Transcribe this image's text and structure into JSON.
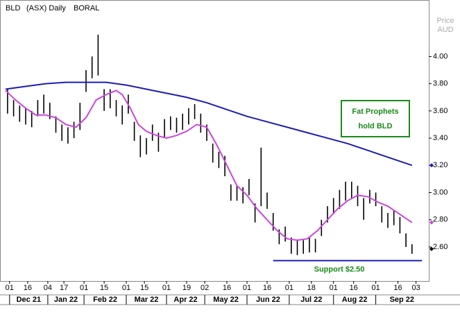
{
  "chart_data": {
    "type": "range-bar",
    "title": [
      "BLD",
      "(ASX) Daily",
      "BORAL"
    ],
    "y_axis_title": [
      "Price",
      "AUD"
    ],
    "xlim": [
      0,
      210
    ],
    "ylim": [
      2.35,
      4.41
    ],
    "yticks": [
      {
        "value": 4,
        "label": "4.00"
      },
      {
        "value": 3.8,
        "label": "3.80"
      },
      {
        "value": 3.6,
        "label": "3.60"
      },
      {
        "value": 3.4,
        "label": "3.40"
      },
      {
        "value": 3.2,
        "label": "3.20"
      },
      {
        "value": 3,
        "label": "3.00"
      },
      {
        "value": 2.8,
        "label": "2.80"
      },
      {
        "value": 2.6,
        "label": "2.60"
      }
    ],
    "xticks": [
      {
        "value": 2,
        "label": "01"
      },
      {
        "value": 11,
        "label": "16"
      },
      {
        "value": 21,
        "label": "04"
      },
      {
        "value": 29,
        "label": "17"
      },
      {
        "value": 39,
        "label": "01"
      },
      {
        "value": 49,
        "label": "15"
      },
      {
        "value": 60,
        "label": "01"
      },
      {
        "value": 69,
        "label": "15"
      },
      {
        "value": 80,
        "label": "01"
      },
      {
        "value": 90,
        "label": "19"
      },
      {
        "value": 99,
        "label": "02"
      },
      {
        "value": 110,
        "label": "16"
      },
      {
        "value": 120,
        "label": "01"
      },
      {
        "value": 130,
        "label": "16"
      },
      {
        "value": 141,
        "label": "01"
      },
      {
        "value": 152,
        "label": "18"
      },
      {
        "value": 163,
        "label": "01"
      },
      {
        "value": 173,
        "label": "16"
      },
      {
        "value": 184,
        "label": "01"
      },
      {
        "value": 195,
        "label": "16"
      },
      {
        "value": 204,
        "label": "03"
      }
    ],
    "month_ticks": [
      {
        "value": 2,
        "label": "Dec 21"
      },
      {
        "value": 21,
        "label": "Jan 22"
      },
      {
        "value": 39,
        "label": "Feb 22"
      },
      {
        "value": 60,
        "label": "Mar 22"
      },
      {
        "value": 80,
        "label": "Apr 22"
      },
      {
        "value": 99,
        "label": "May 22"
      },
      {
        "value": 120,
        "label": "Jun 22"
      },
      {
        "value": 141,
        "label": "Jul 22"
      },
      {
        "value": 163,
        "label": "Aug 22"
      },
      {
        "value": 184,
        "label": "Sep 22"
      }
    ],
    "bars": {
      "color": "#000000",
      "x": [
        1,
        4,
        7,
        10,
        13,
        16,
        19,
        22,
        25,
        28,
        31,
        34,
        37,
        40,
        43,
        46,
        49,
        52,
        55,
        58,
        61,
        64,
        67,
        70,
        73,
        76,
        79,
        82,
        85,
        88,
        91,
        94,
        97,
        100,
        103,
        106,
        109,
        112,
        115,
        118,
        121,
        124,
        127,
        130,
        133,
        136,
        139,
        142,
        145,
        148,
        151,
        154,
        157,
        160,
        163,
        166,
        169,
        172,
        175,
        178,
        181,
        184,
        187,
        190,
        193,
        196,
        199,
        202
      ],
      "high": [
        3.76,
        3.68,
        3.64,
        3.62,
        3.6,
        3.68,
        3.72,
        3.66,
        3.56,
        3.5,
        3.48,
        3.52,
        3.66,
        3.9,
        4.0,
        4.16,
        3.76,
        3.76,
        3.68,
        3.64,
        3.72,
        3.52,
        3.42,
        3.4,
        3.5,
        3.44,
        3.54,
        3.56,
        3.55,
        3.58,
        3.62,
        3.65,
        3.58,
        3.5,
        3.36,
        3.3,
        3.27,
        3.06,
        3.05,
        3.04,
        3.1,
        2.92,
        3.33,
        3.0,
        2.85,
        2.73,
        2.75,
        2.67,
        2.65,
        2.65,
        2.67,
        2.66,
        2.8,
        2.9,
        2.96,
        3.02,
        3.08,
        3.08,
        3.05,
        2.96,
        3.02,
        3.0,
        2.9,
        2.85,
        2.87,
        2.82,
        2.7,
        2.62
      ],
      "low": [
        3.58,
        3.56,
        3.52,
        3.5,
        3.48,
        3.56,
        3.58,
        3.54,
        3.44,
        3.38,
        3.36,
        3.4,
        3.46,
        3.74,
        3.84,
        3.86,
        3.6,
        3.62,
        3.56,
        3.5,
        3.58,
        3.38,
        3.26,
        3.28,
        3.38,
        3.3,
        3.4,
        3.46,
        3.44,
        3.46,
        3.5,
        3.54,
        3.44,
        3.38,
        3.22,
        3.18,
        3.12,
        2.94,
        2.94,
        2.92,
        2.98,
        2.78,
        2.9,
        2.88,
        2.72,
        2.62,
        2.64,
        2.55,
        2.54,
        2.55,
        2.56,
        2.56,
        2.68,
        2.78,
        2.84,
        2.88,
        2.94,
        2.96,
        2.9,
        2.8,
        2.92,
        2.9,
        2.78,
        2.74,
        2.76,
        2.7,
        2.6,
        2.55
      ]
    },
    "moving_averages": [
      {
        "color": "#1c1cb4",
        "x": [
          0,
          10,
          20,
          30,
          40,
          50,
          60,
          70,
          80,
          90,
          100,
          110,
          120,
          130,
          140,
          150,
          160,
          170,
          180,
          190,
          202
        ],
        "values": [
          3.76,
          3.78,
          3.8,
          3.81,
          3.81,
          3.81,
          3.79,
          3.76,
          3.73,
          3.7,
          3.66,
          3.61,
          3.56,
          3.52,
          3.48,
          3.44,
          3.4,
          3.36,
          3.31,
          3.26,
          3.2
        ]
      },
      {
        "color": "#cc44dd",
        "x": [
          0,
          5,
          10,
          15,
          20,
          25,
          30,
          35,
          40,
          45,
          50,
          55,
          58,
          62,
          66,
          70,
          75,
          80,
          85,
          90,
          95,
          100,
          105,
          110,
          115,
          120,
          125,
          130,
          135,
          140,
          145,
          150,
          155,
          160,
          165,
          170,
          175,
          180,
          185,
          190,
          195,
          202
        ],
        "values": [
          3.75,
          3.68,
          3.62,
          3.57,
          3.57,
          3.55,
          3.5,
          3.48,
          3.55,
          3.68,
          3.72,
          3.75,
          3.72,
          3.62,
          3.5,
          3.45,
          3.42,
          3.4,
          3.42,
          3.45,
          3.5,
          3.48,
          3.35,
          3.2,
          3.05,
          2.98,
          2.88,
          2.8,
          2.72,
          2.66,
          2.65,
          2.66,
          2.72,
          2.8,
          2.88,
          2.94,
          2.98,
          2.97,
          2.93,
          2.9,
          2.85,
          2.78
        ]
      }
    ],
    "support": {
      "value": 2.5,
      "x": [
        133,
        207
      ],
      "label": "Support $2.50",
      "color": "#1c1cb4"
    },
    "annotation": {
      "lines": [
        "Fat Prophets",
        "hold BLD"
      ],
      "color": "#1a8a1a"
    }
  }
}
